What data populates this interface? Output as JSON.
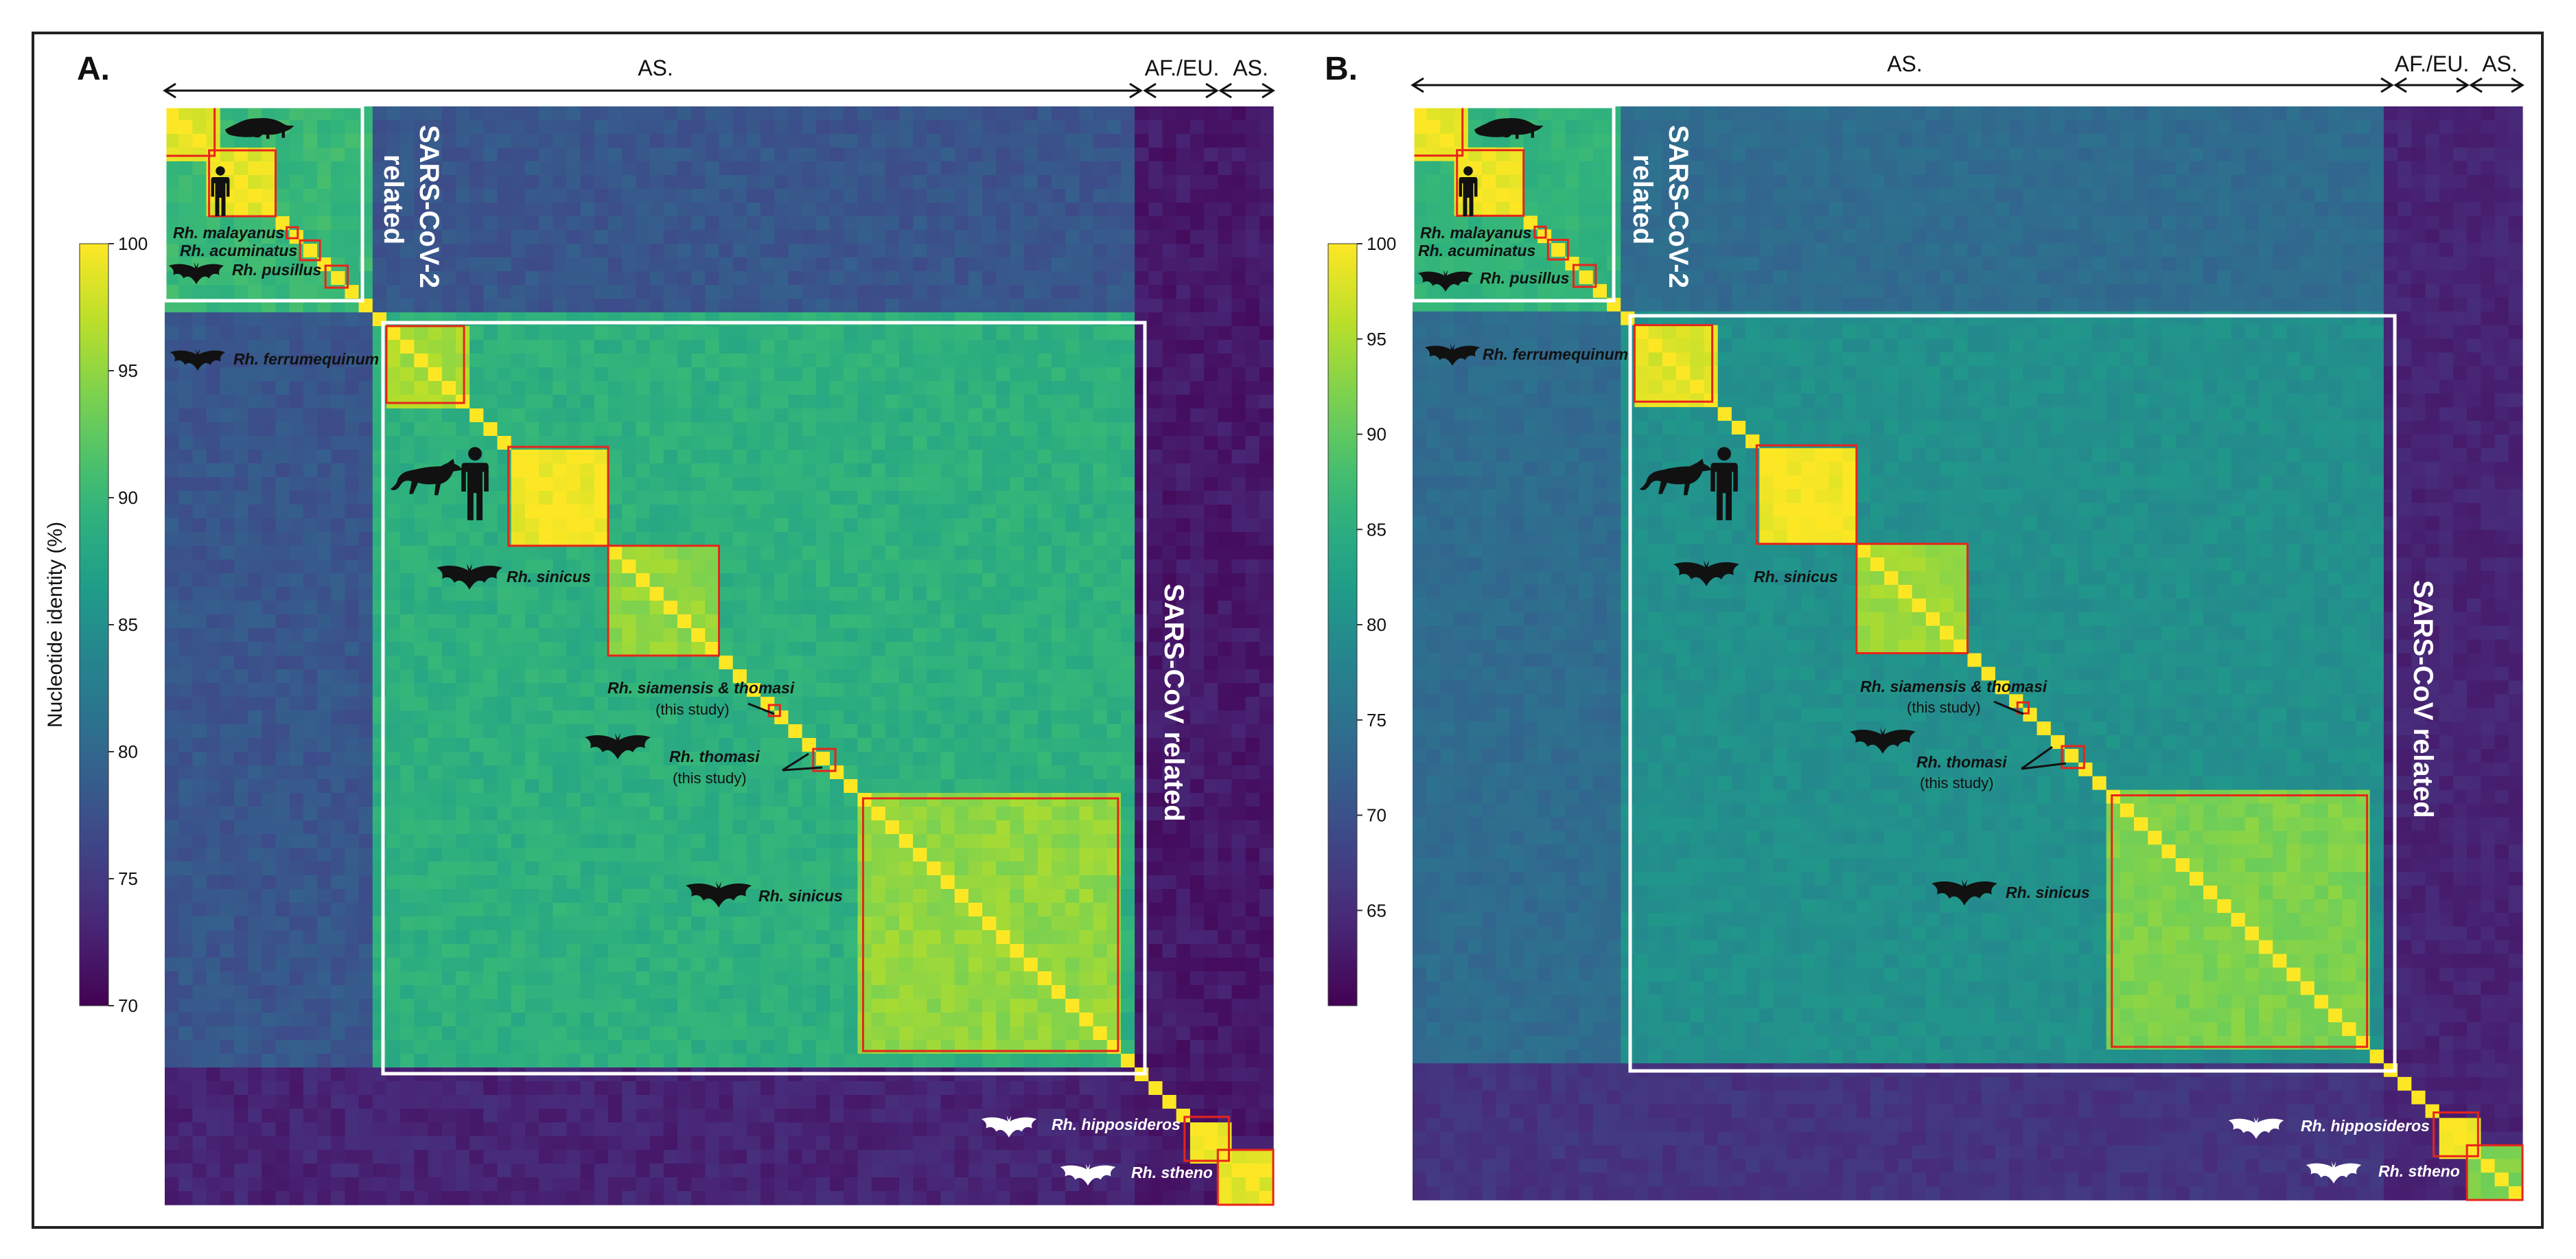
{
  "colormap": [
    "#440154",
    "#482878",
    "#3e4989",
    "#31688e",
    "#26828e",
    "#1f9e89",
    "#35b779",
    "#6ece58",
    "#b5de2b",
    "#fde725"
  ],
  "highlight_color": "#e8241a",
  "frame_color": "#ffffff",
  "colorbar_label": "Nucleotide identity (%)",
  "chart_data": [
    {
      "type": "heatmap",
      "panel_label": "A.",
      "zlim": [
        70,
        100
      ],
      "colorbar_ticks": [
        100,
        95,
        90,
        85,
        80,
        75,
        70
      ],
      "region_labels": [
        "AS.",
        "AF./EU.",
        "AS."
      ],
      "group_labels": [
        "SARS-CoV-2",
        "related",
        "SARS-CoV related"
      ],
      "base_identity": 78,
      "off_diagonal_identity": [
        {
          "rows": [
            0,
            0.185
          ],
          "cols": [
            0,
            0.185
          ],
          "value": 90
        },
        {
          "rows": [
            0.185,
            0.87
          ],
          "cols": [
            0.185,
            0.87
          ],
          "value": 89
        },
        {
          "rows": [
            0.87,
            1
          ],
          "cols": [
            0,
            1
          ],
          "value": 73
        },
        {
          "rows": [
            0,
            1
          ],
          "cols": [
            0.87,
            1
          ],
          "value": 72
        }
      ],
      "clusters": [
        {
          "range": [
            0.0,
            0.045
          ],
          "value": 99,
          "label": ""
        },
        {
          "range": [
            0.04,
            0.1
          ],
          "value": 99,
          "label": ""
        },
        {
          "range": [
            0.11,
            0.12
          ],
          "value": 99,
          "label": "Rh. malayanus"
        },
        {
          "range": [
            0.122,
            0.14
          ],
          "value": 99,
          "label": "Rh. acuminatus"
        },
        {
          "range": [
            0.145,
            0.165
          ],
          "value": 97,
          "label": "Rh. pusillus"
        },
        {
          "range": [
            0.2,
            0.27
          ],
          "value": 96,
          "label": "Rh. ferrumequinum"
        },
        {
          "range": [
            0.31,
            0.4
          ],
          "value": 99.5,
          "label": ""
        },
        {
          "range": [
            0.4,
            0.5
          ],
          "value": 95,
          "label": "Rh. sinicus"
        },
        {
          "range": [
            0.545,
            0.555
          ],
          "value": 99,
          "label": "Rh. siamensis & thomasi"
        },
        {
          "range": [
            0.585,
            0.605
          ],
          "value": 99,
          "label": "Rh. thomasi"
        },
        {
          "range": [
            0.63,
            0.86
          ],
          "value": 95,
          "label": "Rh. sinicus"
        },
        {
          "range": [
            0.92,
            0.96
          ],
          "value": 99,
          "label": "Rh. hipposideros"
        },
        {
          "range": [
            0.95,
            1.0
          ],
          "value": 99,
          "label": "Rh. stheno"
        }
      ],
      "annotations": [
        "Rh. malayanus",
        "Rh. acuminatus",
        "Rh. pusillus",
        "Rh. ferrumequinum",
        "Rh. sinicus",
        "Rh. siamensis & thomasi",
        "(this study)",
        "Rh. thomasi",
        "(this study)",
        "Rh. sinicus",
        "Rh. hipposideros",
        "Rh. stheno"
      ]
    },
    {
      "type": "heatmap",
      "panel_label": "B.",
      "zlim": [
        60,
        100
      ],
      "colorbar_ticks": [
        100,
        95,
        90,
        85,
        80,
        75,
        70,
        65
      ],
      "region_labels": [
        "AS.",
        "AF./EU.",
        "AS."
      ],
      "group_labels": [
        "SARS-CoV-2",
        "related",
        "SARS-CoV related"
      ],
      "base_identity": 74,
      "off_diagonal_identity": [
        {
          "rows": [
            0,
            0.185
          ],
          "cols": [
            0,
            0.185
          ],
          "value": 86
        },
        {
          "rows": [
            0.185,
            0.87
          ],
          "cols": [
            0.185,
            0.87
          ],
          "value": 80
        },
        {
          "rows": [
            0.87,
            1
          ],
          "cols": [
            0,
            1
          ],
          "value": 66
        },
        {
          "rows": [
            0,
            1
          ],
          "cols": [
            0.87,
            1
          ],
          "value": 64
        }
      ],
      "clusters": [
        {
          "range": [
            0.0,
            0.045
          ],
          "value": 99,
          "label": ""
        },
        {
          "range": [
            0.04,
            0.1
          ],
          "value": 99,
          "label": ""
        },
        {
          "range": [
            0.11,
            0.12
          ],
          "value": 99,
          "label": "Rh. malayanus"
        },
        {
          "range": [
            0.122,
            0.14
          ],
          "value": 99,
          "label": "Rh. acuminatus"
        },
        {
          "range": [
            0.145,
            0.165
          ],
          "value": 93,
          "label": "Rh. pusillus"
        },
        {
          "range": [
            0.2,
            0.27
          ],
          "value": 98,
          "label": "Rh. ferrumequinum"
        },
        {
          "range": [
            0.31,
            0.4
          ],
          "value": 99.5,
          "label": ""
        },
        {
          "range": [
            0.4,
            0.5
          ],
          "value": 94,
          "label": "Rh. sinicus"
        },
        {
          "range": [
            0.545,
            0.555
          ],
          "value": 99,
          "label": "Rh. siamensis & thomasi"
        },
        {
          "range": [
            0.585,
            0.605
          ],
          "value": 99,
          "label": "Rh. thomasi"
        },
        {
          "range": [
            0.63,
            0.86
          ],
          "value": 92,
          "label": "Rh. sinicus"
        },
        {
          "range": [
            0.92,
            0.96
          ],
          "value": 99,
          "label": "Rh. hipposideros"
        },
        {
          "range": [
            0.95,
            1.0
          ],
          "value": 92,
          "label": "Rh. stheno"
        }
      ],
      "annotations": [
        "Rh. malayanus",
        "Rh. acuminatus",
        "Rh. pusillus",
        "Rh. ferrumequinum",
        "Rh. sinicus",
        "Rh. siamensis & thomasi",
        "(this study)",
        "Rh. thomasi",
        "(this study)",
        "Rh. sinicus",
        "Rh. hipposideros",
        "Rh. stheno"
      ]
    }
  ]
}
